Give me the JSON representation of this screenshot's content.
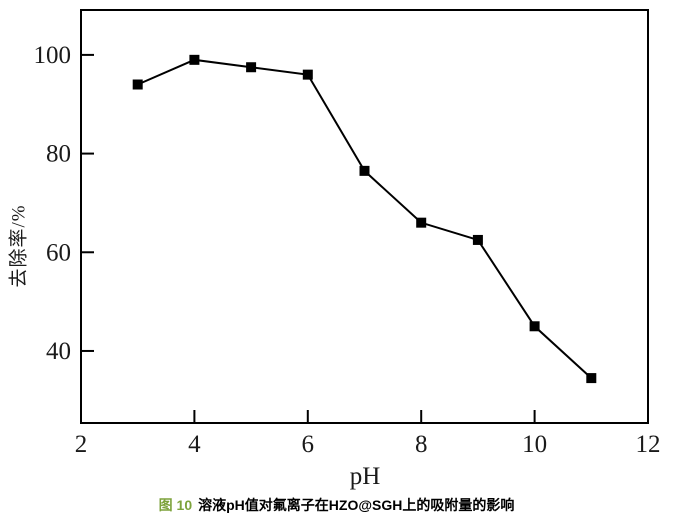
{
  "chart_data": {
    "type": "line",
    "x": [
      3,
      4,
      5,
      6,
      7,
      8,
      9,
      10,
      11
    ],
    "values": [
      94,
      99,
      97.5,
      96,
      76.5,
      66,
      62.5,
      45,
      34.5
    ],
    "series": [
      {
        "name": "removal-rate",
        "values": [
          94,
          99,
          97.5,
          96,
          76.5,
          66,
          62.5,
          45,
          34.5
        ]
      }
    ],
    "title": "",
    "xlabel": "pH",
    "ylabel": "去除率/%",
    "xlim": [
      2,
      12
    ],
    "ylim": [
      25.4,
      109.1
    ],
    "x_ticks": [
      2,
      4,
      6,
      8,
      10,
      12
    ],
    "y_ticks": [
      40,
      60,
      80,
      100
    ],
    "grid": "off",
    "legend": "none",
    "marker": "square",
    "line_color": "#000000",
    "marker_color": "#000000"
  },
  "caption": {
    "figure_label": "图 10",
    "text": "溶液pH值对氟离子在HZO@SGH上的吸附量的影响",
    "label_color": "#7da33c"
  }
}
